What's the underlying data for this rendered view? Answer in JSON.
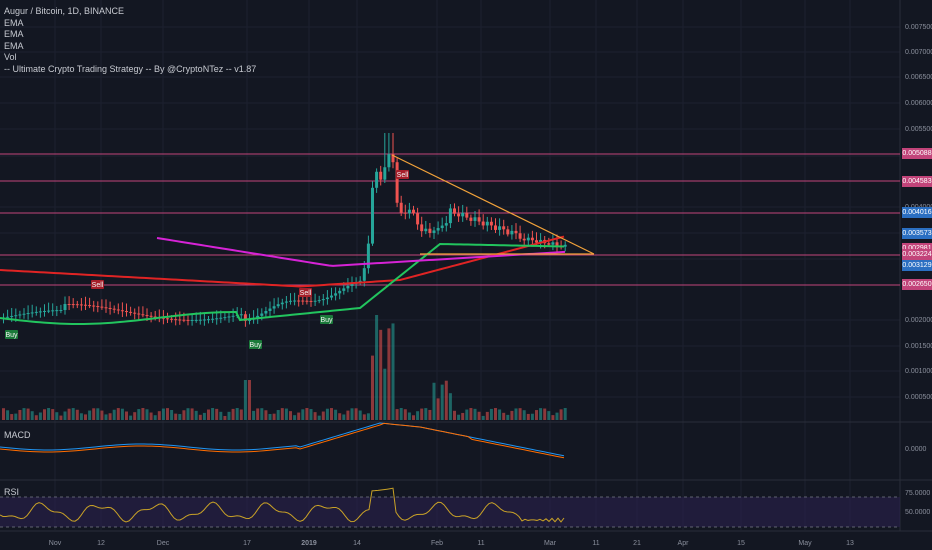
{
  "legend": {
    "symbol": "Augur / Bitcoin, 1D, BINANCE",
    "ema1": "EMA",
    "ema2": "EMA",
    "ema3": "EMA",
    "vol": "Vol",
    "strategy": "-- Ultimate Crypto Trading Strategy -- By @CryptoNTez -- v1.87"
  },
  "panes": {
    "macd": "MACD",
    "rsi": "RSI"
  },
  "price_axis": [
    "0.007500",
    "0.007000",
    "0.006500",
    "0.006000",
    "0.005500",
    "0.005000",
    "0.004500",
    "0.004000",
    "0.003500",
    "0.003000",
    "0.002500",
    "0.002000",
    "0.001500",
    "0.001000",
    "0.000500"
  ],
  "macd_axis": [
    "0.0000"
  ],
  "rsi_axis": [
    "75.0000",
    "50.0000"
  ],
  "price_tags": [
    {
      "text": "0.005088",
      "color": "#c2447a"
    },
    {
      "text": "0.004583",
      "color": "#c2447a"
    },
    {
      "text": "0.004016",
      "color": "#2b6fc2"
    },
    {
      "text": "0.003573",
      "color": "#2b6fc2"
    },
    {
      "text": "0.002981",
      "color": "#c2447a"
    },
    {
      "text": "0.003224",
      "color": "#c2447a"
    },
    {
      "text": "0.003129",
      "color": "#2b6fc2"
    },
    {
      "text": "0.002650",
      "color": "#c2447a"
    }
  ],
  "time_axis": [
    "Nov",
    "12",
    "Dec",
    "17",
    "2019",
    "14",
    "Feb",
    "11",
    "Mar",
    "11",
    "21",
    "Apr",
    "15",
    "May",
    "13"
  ],
  "signals": [
    {
      "text": "Sell",
      "type": "sell"
    },
    {
      "text": "Sell",
      "type": "sell"
    },
    {
      "text": "Sell",
      "type": "sell"
    },
    {
      "text": "Buy",
      "type": "buy"
    },
    {
      "text": "Buy",
      "type": "buy"
    },
    {
      "text": "Buy",
      "type": "buy"
    }
  ],
  "colors": {
    "background": "#131722",
    "up": "#26a69a",
    "down": "#ef5350",
    "ema_fast": "#22c55e",
    "ema_mid": "#d623d6",
    "ema_slow": "#e02424",
    "triangle": "#f2a23a",
    "resistance": "#c2447a",
    "macd": "#2196f3",
    "signal": "#ff6d00",
    "rsi": "#c9a227",
    "rsi_band": "#2a1f4d"
  }
}
